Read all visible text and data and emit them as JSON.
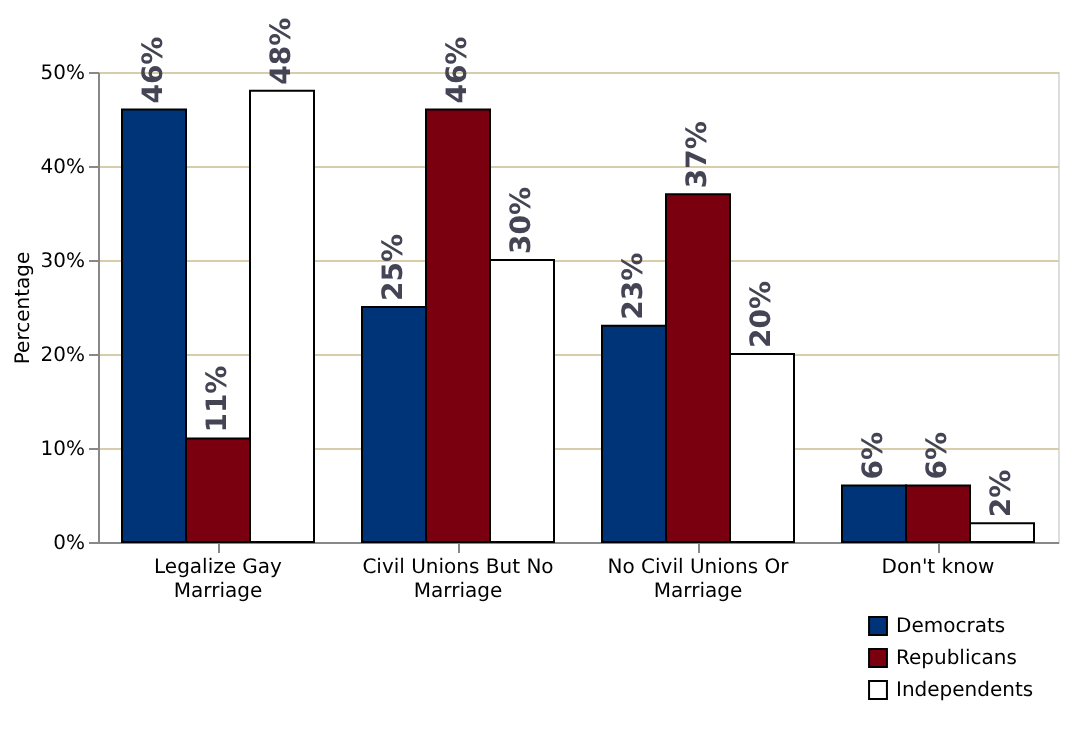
{
  "chart_data": {
    "type": "bar",
    "ylabel": "Percentage",
    "categories": [
      "Legalize Gay Marriage",
      "Civil Unions But No Marriage",
      "No Civil Unions Or Marriage",
      "Don't know"
    ],
    "series": [
      {
        "name": "Democrats",
        "color": "#003478",
        "values": [
          46,
          25,
          23,
          6
        ],
        "value_labels": [
          "46%",
          "25%",
          "23%",
          "6%"
        ]
      },
      {
        "name": "Republicans",
        "color": "#7a0010",
        "values": [
          11,
          46,
          37,
          6
        ],
        "value_labels": [
          "11%",
          "46%",
          "37%",
          "6%"
        ]
      },
      {
        "name": "Independents",
        "color": "#ffffff",
        "values": [
          48,
          30,
          20,
          2
        ],
        "value_labels": [
          "48%",
          "30%",
          "20%",
          "2%"
        ]
      }
    ],
    "ylim": [
      0,
      50
    ],
    "yticks": [
      {
        "value": 0,
        "label": "0%"
      },
      {
        "value": 10,
        "label": "10%"
      },
      {
        "value": 20,
        "label": "20%"
      },
      {
        "value": 30,
        "label": "30%"
      },
      {
        "value": 40,
        "label": "40%"
      },
      {
        "value": 50,
        "label": "50%"
      }
    ],
    "grid": "y",
    "legend": "bottom right"
  }
}
